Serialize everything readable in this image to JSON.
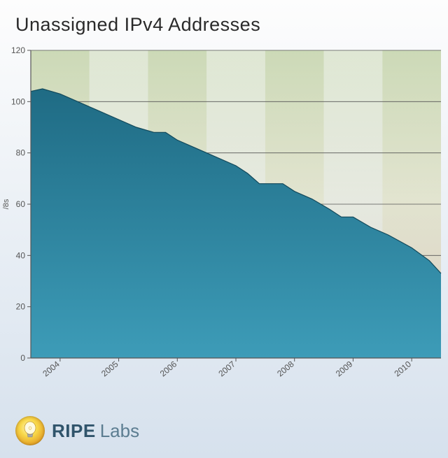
{
  "title": "Unassigned IPv4 Addresses",
  "chart": {
    "type": "area",
    "ylabel": "/8s",
    "ylabel_fontsize": 11,
    "ylim": [
      0,
      120
    ],
    "ytick_step": 20,
    "yticks": [
      0,
      20,
      40,
      60,
      80,
      100,
      120
    ],
    "xticks": [
      2004,
      2005,
      2006,
      2007,
      2008,
      2009,
      2010
    ],
    "xlim": [
      2003.5,
      2010.5
    ],
    "background_bands": {
      "top_color": "#a8bf7f",
      "mid_color": "#d9d9b0",
      "bottom_color": "#d9b99a",
      "dark_alpha": 0.55,
      "light_alpha": 0.32
    },
    "gridline_color": "#555555",
    "axis_color": "#555555",
    "tick_label_color": "#555555",
    "tick_label_fontsize": 12,
    "area_fill_top": "#1f6b84",
    "area_fill_bottom": "#3d9cb8",
    "area_line_color": "#12485a",
    "area_line_width": 1.2,
    "series": [
      {
        "x": 2003.5,
        "y": 104
      },
      {
        "x": 2003.7,
        "y": 105
      },
      {
        "x": 2004.0,
        "y": 103
      },
      {
        "x": 2004.3,
        "y": 100
      },
      {
        "x": 2004.6,
        "y": 97
      },
      {
        "x": 2005.0,
        "y": 93
      },
      {
        "x": 2005.3,
        "y": 90
      },
      {
        "x": 2005.6,
        "y": 88
      },
      {
        "x": 2005.8,
        "y": 88
      },
      {
        "x": 2006.0,
        "y": 85
      },
      {
        "x": 2006.3,
        "y": 82
      },
      {
        "x": 2006.6,
        "y": 79
      },
      {
        "x": 2007.0,
        "y": 75
      },
      {
        "x": 2007.2,
        "y": 72
      },
      {
        "x": 2007.4,
        "y": 68
      },
      {
        "x": 2007.8,
        "y": 68
      },
      {
        "x": 2008.0,
        "y": 65
      },
      {
        "x": 2008.3,
        "y": 62
      },
      {
        "x": 2008.6,
        "y": 58
      },
      {
        "x": 2008.8,
        "y": 55
      },
      {
        "x": 2009.0,
        "y": 55
      },
      {
        "x": 2009.3,
        "y": 51
      },
      {
        "x": 2009.6,
        "y": 48
      },
      {
        "x": 2010.0,
        "y": 43
      },
      {
        "x": 2010.3,
        "y": 38
      },
      {
        "x": 2010.5,
        "y": 33
      }
    ]
  },
  "footer": {
    "brand_bold": "RIPE",
    "brand_light": "Labs",
    "brand_bold_color": "#30546b",
    "brand_light_color": "#5c7d91",
    "bulb_icon": "bulb"
  },
  "page_bg_top": "#fdfdfd",
  "page_bg_bottom": "#d6e1ed"
}
